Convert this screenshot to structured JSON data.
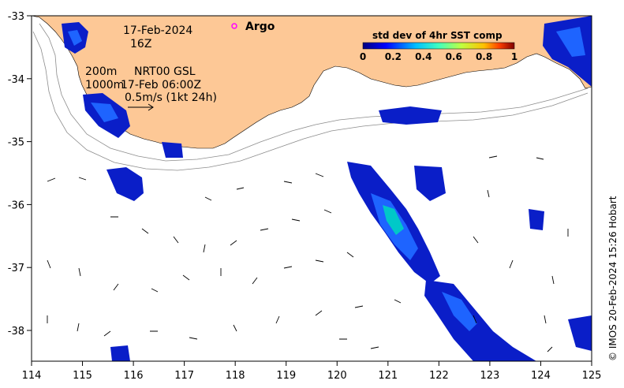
{
  "map": {
    "lon_ticks": [
      "114",
      "115",
      "116",
      "117",
      "118",
      "119",
      "120",
      "121",
      "122",
      "123",
      "124",
      "125"
    ],
    "lat_ticks": [
      "-33",
      "-34",
      "-35",
      "-36",
      "-37",
      "-38"
    ],
    "date": "17-Feb-2024",
    "hour": "16Z",
    "contour_label_1": "200m",
    "contour_label_2": "1000m",
    "product": "NRT00 GSL",
    "product_time": "17-Feb 06:00Z",
    "velocity_scale": "0.5m/s (1kt 24h)",
    "argo_label": "Argo",
    "colorbar_title": "std dev of 4hr SST comp",
    "colorbar_ticks": [
      "0",
      "0.2",
      "0.4",
      "0.6",
      "0.8",
      "1"
    ],
    "credit": "© IMOS 20-Feb-2024 15:26 Hobart",
    "colors": {
      "land": "#fdc896",
      "ocean": "#ffffff",
      "sst_low": "#00008b",
      "sst_mid": "#1e8bff",
      "sst_high": "#00c8c8",
      "argo": "#ff00ff"
    }
  }
}
